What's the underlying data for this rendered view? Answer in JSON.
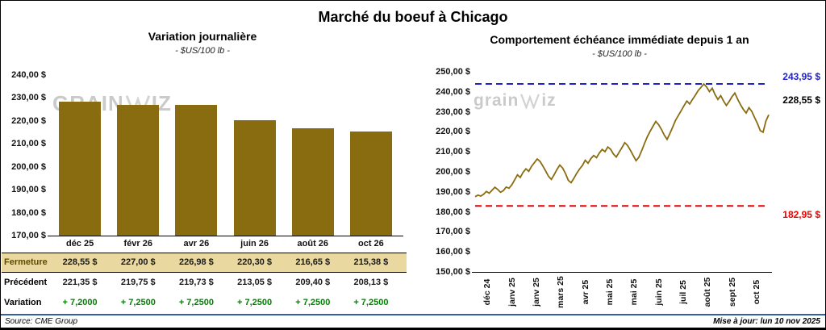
{
  "page": {
    "title": "Marché du boeuf à Chicago",
    "source": "Source: CME Group",
    "updated": "Mise à jour: lun 10 nov 2025"
  },
  "colors": {
    "bar": "#8a6c10",
    "line": "#8a6c10",
    "max_line": "#2222cc",
    "min_line": "#ee0000",
    "gain_green": "#008200",
    "highlight_bg": "#e9d9a0",
    "footer_rule": "#2f5fa8"
  },
  "watermark": {
    "left_prefix": "GRAIN",
    "left_suffix": "IZ",
    "right_prefix": "grain",
    "right_suffix": "iz"
  },
  "chart_data": [
    {
      "type": "bar",
      "title": "Variation journalière",
      "subtitle": "- $US/100 lb -",
      "categories": [
        "déc 25",
        "févr 26",
        "avr 26",
        "juin 26",
        "août 26",
        "oct 26"
      ],
      "values": [
        228.55,
        227.0,
        226.98,
        220.3,
        216.65,
        215.38
      ],
      "ylim": [
        170,
        240
      ],
      "ytick_step": 10,
      "ytick_labels": [
        "240,00 $",
        "230,00 $",
        "220,00 $",
        "210,00 $",
        "200,00 $",
        "190,00 $",
        "180,00 $",
        "170,00 $"
      ],
      "grid": false,
      "legend": false
    },
    {
      "type": "line",
      "title": "Comportement échéance immédiate depuis 1 an",
      "subtitle": "- $US/100 lb -",
      "x_labels": [
        "déc 24",
        "janv 25",
        "janv 25",
        "mars 25",
        "avr 25",
        "mai 25",
        "mai 25",
        "juin 25",
        "juil 25",
        "août 25",
        "sept 25",
        "oct 25"
      ],
      "ylim": [
        150,
        250
      ],
      "ytick_step": 10,
      "ytick_labels": [
        "250,00 $",
        "240,00 $",
        "230,00 $",
        "220,00 $",
        "210,00 $",
        "200,00 $",
        "190,00 $",
        "180,00 $",
        "170,00 $",
        "160,00 $",
        "150,00 $"
      ],
      "grid": false,
      "legend": false,
      "max_line": {
        "value": 243.95,
        "label": "243,95 $"
      },
      "min_line": {
        "value": 182.95,
        "label": "182,95 $"
      },
      "last": {
        "value": 228.55,
        "label": "228,55 $"
      },
      "series": [
        {
          "name": "échéance immédiate",
          "values": [
            187.6,
            188.4,
            187.9,
            188.8,
            190.2,
            189.3,
            190.8,
            192.3,
            191.2,
            189.8,
            190.6,
            192.4,
            191.8,
            193.5,
            196.0,
            198.5,
            197.2,
            199.8,
            201.5,
            200.3,
            202.8,
            204.6,
            206.4,
            205.2,
            202.9,
            200.4,
            197.8,
            196.2,
            198.6,
            201.2,
            203.4,
            201.9,
            199.2,
            195.8,
            194.6,
            196.8,
            199.3,
            201.4,
            203.2,
            205.8,
            204.3,
            206.6,
            208.2,
            207.1,
            209.4,
            211.2,
            210.1,
            212.4,
            211.3,
            208.9,
            207.4,
            209.8,
            212.1,
            214.6,
            213.2,
            210.8,
            208.2,
            205.6,
            207.3,
            210.6,
            214.2,
            217.6,
            220.3,
            222.8,
            225.2,
            223.6,
            221.2,
            218.4,
            216.2,
            219.2,
            222.4,
            225.8,
            228.2,
            230.6,
            233.1,
            235.4,
            233.9,
            236.2,
            238.3,
            240.6,
            242.2,
            243.9,
            242.4,
            240.1,
            241.8,
            238.6,
            236.2,
            238.1,
            235.4,
            233.2,
            235.2,
            237.6,
            239.4,
            236.3,
            233.6,
            231.2,
            229.4,
            232.1,
            230.2,
            227.1,
            224.2,
            220.6,
            219.8,
            225.4,
            228.55
          ]
        }
      ]
    }
  ],
  "table": {
    "rows": [
      {
        "label": "Fermeture",
        "values": [
          "228,55 $",
          "227,00 $",
          "226,98 $",
          "220,30 $",
          "216,65 $",
          "215,38 $"
        ]
      },
      {
        "label": "Précédent",
        "values": [
          "221,35 $",
          "219,75 $",
          "219,73 $",
          "213,05 $",
          "209,40 $",
          "208,13 $"
        ]
      },
      {
        "label": "Variation",
        "values": [
          "+ 7,2000",
          "+ 7,2500",
          "+ 7,2500",
          "+ 7,2500",
          "+ 7,2500",
          "+ 7,2500"
        ]
      }
    ]
  }
}
